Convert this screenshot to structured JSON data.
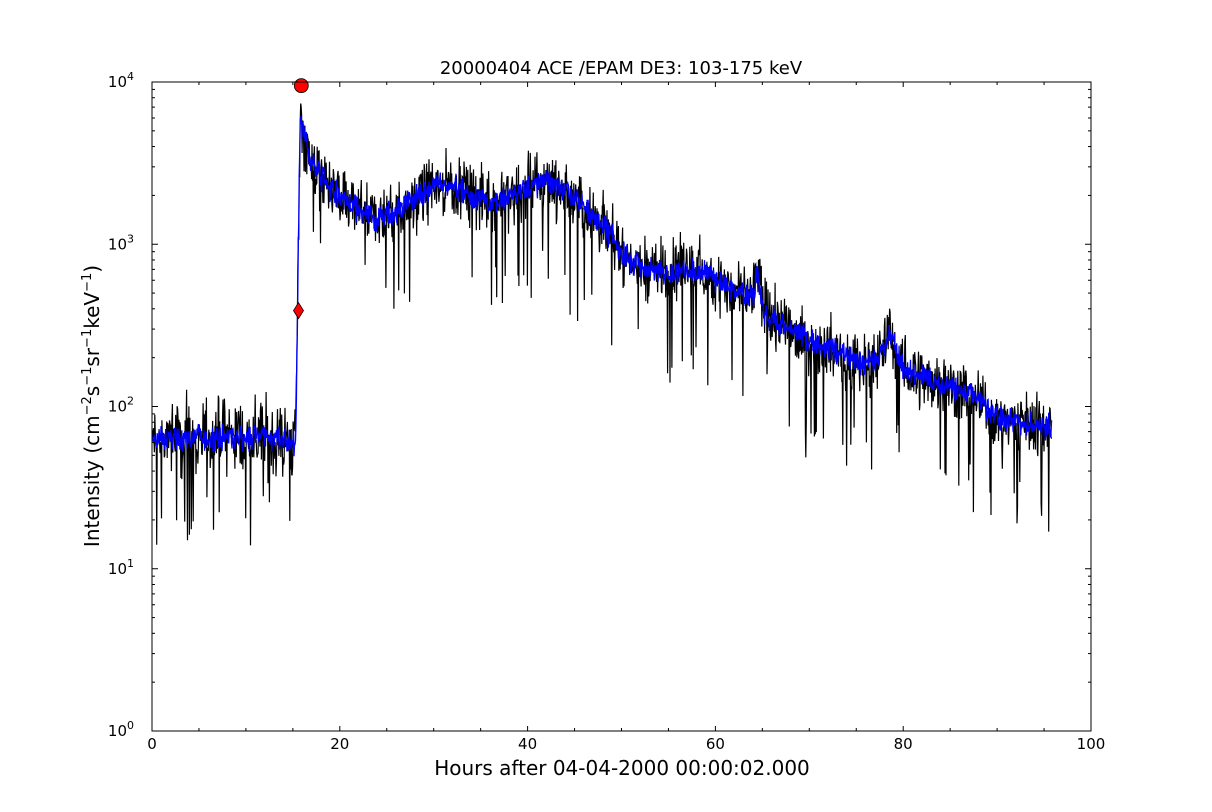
{
  "chart_data": {
    "type": "line",
    "title": "20000404 ACE /EPAM DE3: 103-175 keV",
    "xlabel": "Hours after 04-04-2000 00:00:02.000",
    "ylabel_main": "Intensity (cm",
    "ylabel_parts": [
      "Intensity (cm",
      "−2",
      "s",
      "−1",
      "sr",
      "−1",
      "keV",
      "−1",
      ")"
    ],
    "xlim": [
      0,
      100
    ],
    "ylim": [
      1,
      10000
    ],
    "yscale": "log",
    "grid": false,
    "x_ticks": [
      0,
      20,
      40,
      60,
      80,
      100
    ],
    "x_tick_labels": [
      "0",
      "20",
      "40",
      "60",
      "80",
      "100"
    ],
    "y_ticks": [
      1,
      10,
      100,
      1000,
      10000
    ],
    "y_tick_bases": [
      "10",
      "10",
      "10",
      "10",
      "10"
    ],
    "y_tick_exponents": [
      "0",
      "1",
      "2",
      "3",
      "4"
    ],
    "series": [
      {
        "role": "raw",
        "color": "#000000",
        "envelope_x": [
          0,
          2,
          5,
          8,
          10,
          12,
          14,
          15.3,
          15.5,
          15.8,
          16,
          16.5,
          17,
          18,
          20,
          22,
          24,
          26,
          28,
          30,
          32,
          34,
          36,
          38,
          40,
          42,
          44,
          46,
          48,
          50,
          52,
          54,
          56,
          57,
          58,
          60,
          62,
          64,
          64.5,
          65,
          66,
          68,
          70,
          72,
          74,
          76,
          78,
          78.5,
          80,
          82,
          84,
          86,
          88,
          90,
          92,
          94,
          95.8
        ],
        "envelope_y": [
          62,
          65,
          63,
          66,
          64,
          66,
          62,
          60,
          400,
          7500,
          5200,
          4000,
          3200,
          2600,
          1900,
          1600,
          1450,
          1600,
          1900,
          2300,
          2350,
          2000,
          1800,
          2000,
          2200,
          2500,
          2100,
          1700,
          1300,
          900,
          720,
          680,
          680,
          720,
          680,
          620,
          500,
          470,
          700,
          400,
          350,
          300,
          250,
          230,
          200,
          180,
          220,
          290,
          170,
          150,
          140,
          125,
          110,
          85,
          80,
          78,
          75
        ],
        "noise_factor": 1.9
      },
      {
        "role": "smoothed",
        "color": "#0000ff",
        "noise_factor": 1.25
      }
    ],
    "markers": [
      {
        "shape": "circle",
        "x": 15.9,
        "y": 9500,
        "color": "#ff0000"
      },
      {
        "shape": "diamond",
        "x": 15.6,
        "y": 390,
        "color": "#ff0000"
      }
    ]
  }
}
